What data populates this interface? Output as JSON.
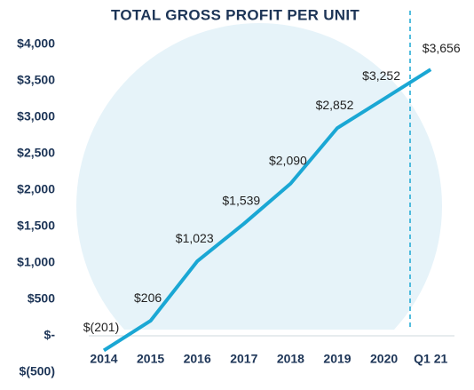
{
  "chart_data": {
    "type": "line",
    "title": "TOTAL GROSS PROFIT PER UNIT",
    "categories": [
      "2014",
      "2015",
      "2016",
      "2017",
      "2018",
      "2019",
      "2020",
      "Q1 21"
    ],
    "series": [
      {
        "name": "Total gross profit per unit",
        "color": "#1aa7d4",
        "values": [
          -201,
          206,
          1023,
          1539,
          2090,
          2852,
          3252,
          3656
        ],
        "value_labels": [
          "$(201)",
          "$206",
          "$1,023",
          "$1,539",
          "$2,090",
          "$2,852",
          "$3,252",
          "$3,656"
        ]
      }
    ],
    "highlight_color": "#1aa7d4",
    "ylim": [
      -500,
      4000
    ],
    "yticks": [
      {
        "value": -500,
        "label": "$(500)"
      },
      {
        "value": 0,
        "label": "$-"
      },
      {
        "value": 500,
        "label": "$500"
      },
      {
        "value": 1000,
        "label": "$1,000"
      },
      {
        "value": 1500,
        "label": "$1,500"
      },
      {
        "value": 2000,
        "label": "$2,000"
      },
      {
        "value": 2500,
        "label": "$2,500"
      },
      {
        "value": 3000,
        "label": "$3,000"
      },
      {
        "value": 3500,
        "label": "$3,500"
      },
      {
        "value": 4000,
        "label": "$4,000"
      }
    ]
  }
}
